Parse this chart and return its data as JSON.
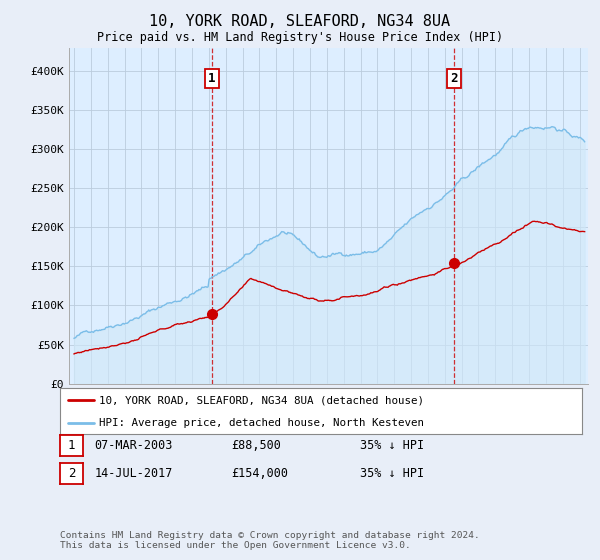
{
  "title": "10, YORK ROAD, SLEAFORD, NG34 8UA",
  "subtitle": "Price paid vs. HM Land Registry's House Price Index (HPI)",
  "ylabel_ticks": [
    "£0",
    "£50K",
    "£100K",
    "£150K",
    "£200K",
    "£250K",
    "£300K",
    "£350K",
    "£400K"
  ],
  "ylim": [
    0,
    420000
  ],
  "xlim_start": 1994.7,
  "xlim_end": 2025.5,
  "hpi_color": "#7bbde8",
  "hpi_fill_color": "#d0e8f8",
  "price_color": "#cc0000",
  "marker1_year": 2003.18,
  "marker1_value": 88500,
  "marker2_year": 2017.54,
  "marker2_value": 154000,
  "legend_label1": "10, YORK ROAD, SLEAFORD, NG34 8UA (detached house)",
  "legend_label2": "HPI: Average price, detached house, North Kesteven",
  "table_row1": [
    "1",
    "07-MAR-2003",
    "£88,500",
    "35% ↓ HPI"
  ],
  "table_row2": [
    "2",
    "14-JUL-2017",
    "£154,000",
    "35% ↓ HPI"
  ],
  "footnote": "Contains HM Land Registry data © Crown copyright and database right 2024.\nThis data is licensed under the Open Government Licence v3.0.",
  "bg_color": "#e8eef8",
  "plot_bg_color": "#ddeeff",
  "grid_color": "#bbccdd"
}
